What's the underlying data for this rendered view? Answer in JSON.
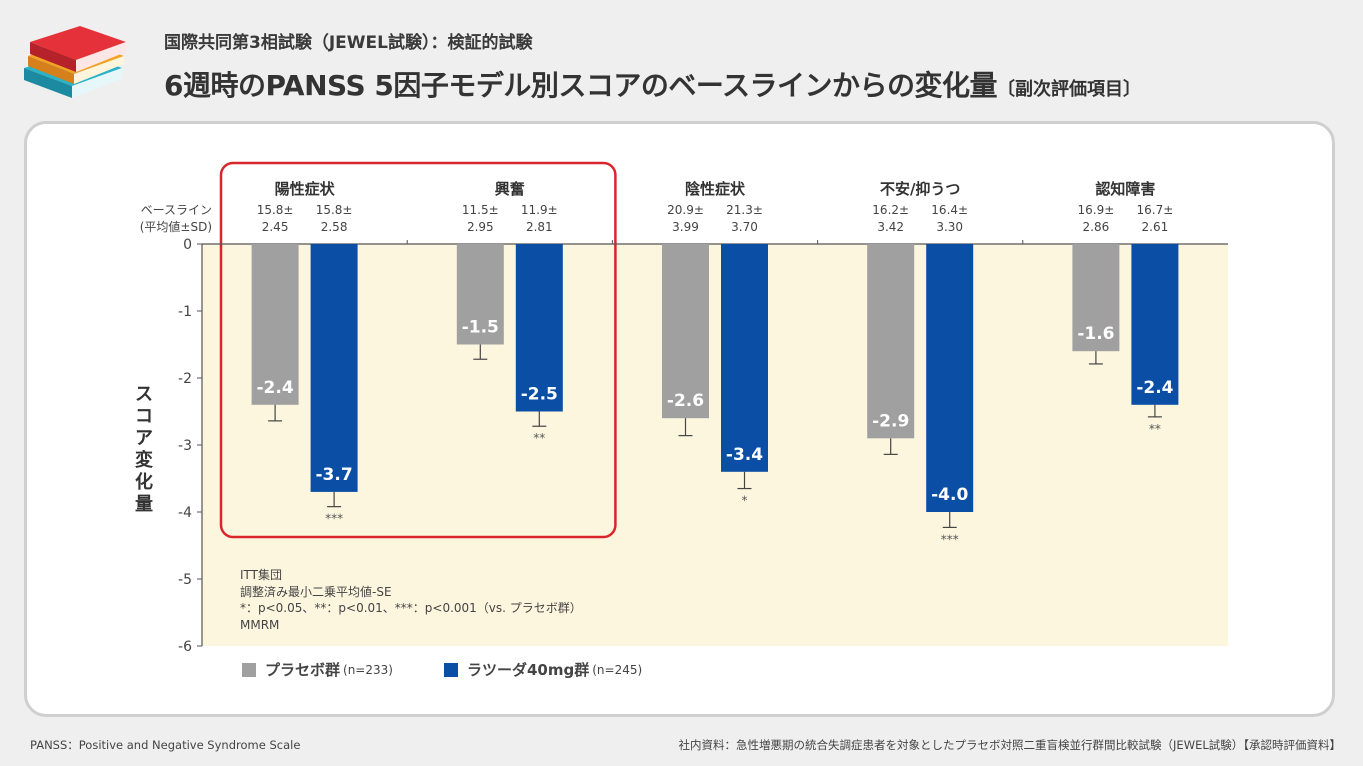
{
  "header": {
    "subtitle": "国際共同第3相試験（JEWEL試験）：検証的試験",
    "title_main": "6週時のPANSS 5因子モデル別スコアのベースラインからの変化量",
    "title_suffix": "〔副次評価項目〕",
    "icon": "books-icon"
  },
  "footer": {
    "left": "PANSS：Positive and Negative Syndrome Scale",
    "right": "社内資料：急性増悪期の統合失調症患者を対象としたプラセボ対照二重盲検並行群間比較試験（JEWEL試験）【承認時評価資料】"
  },
  "notes": [
    "ITT集団",
    "調整済み最小二乗平均値-SE",
    "*：p<0.05、**：p<0.01、***：p<0.001（vs. プラセボ群）",
    "MMRM"
  ],
  "legend": [
    {
      "label": "プラセボ群",
      "n": "(n=233)",
      "color": "#a0a0a0"
    },
    {
      "label": "ラツーダ40mg群",
      "n": "(n=245)",
      "color": "#0a4ea6"
    }
  ],
  "colors": {
    "placebo": "#a0a0a0",
    "drug": "#0a4ea6",
    "plot_bg": "#fdf6df",
    "highlight_box": "#d9252c"
  },
  "chart_data": {
    "type": "bar",
    "ylabel": "スコア変化量",
    "ylim": [
      -6,
      0
    ],
    "yticks": [
      "0",
      "-1",
      "-2",
      "-3",
      "-4",
      "-5",
      "-6"
    ],
    "baseline_label": [
      "ベースライン",
      "(平均値±SD)"
    ],
    "highlighted_categories": [
      "陽性症状",
      "興奮"
    ],
    "categories": [
      "陽性症状",
      "興奮",
      "陰性症状",
      "不安/抑うつ",
      "認知障害"
    ],
    "series": [
      {
        "name": "プラセボ群",
        "values": [
          -2.4,
          -1.5,
          -2.6,
          -2.9,
          -1.6
        ],
        "labels": [
          "-2.4",
          "-1.5",
          "-2.6",
          "-2.9",
          "-1.6"
        ],
        "se": [
          0.24,
          0.22,
          0.26,
          0.24,
          0.19
        ],
        "baseline": [
          [
            "15.8±",
            "2.45"
          ],
          [
            "11.5±",
            "2.95"
          ],
          [
            "20.9±",
            "3.99"
          ],
          [
            "16.2±",
            "3.42"
          ],
          [
            "16.9±",
            "2.86"
          ]
        ],
        "sig": [
          "",
          "",
          "",
          "",
          ""
        ]
      },
      {
        "name": "ラツーダ40mg群",
        "values": [
          -3.7,
          -2.5,
          -3.4,
          -4.0,
          -2.4
        ],
        "labels": [
          "-3.7",
          "-2.5",
          "-3.4",
          "-4.0",
          "-2.4"
        ],
        "se": [
          0.22,
          0.22,
          0.25,
          0.23,
          0.18
        ],
        "baseline": [
          [
            "15.8±",
            "2.58"
          ],
          [
            "11.9±",
            "2.81"
          ],
          [
            "21.3±",
            "3.70"
          ],
          [
            "16.4±",
            "3.30"
          ],
          [
            "16.7±",
            "2.61"
          ]
        ],
        "sig": [
          "***",
          "**",
          "*",
          "***",
          "**"
        ]
      }
    ]
  }
}
